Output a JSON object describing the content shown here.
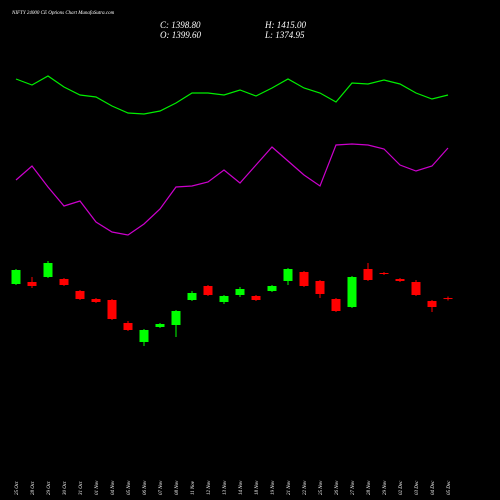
{
  "chart_data": [
    {
      "type": "candlestick",
      "title": "NIFTY 24000 CE Options Chart MunafaSutra.com",
      "info": [
        "C: 1398.80",
        "H: 1415.00",
        "O: 1399.60",
        "L: 1374.95"
      ],
      "categories": [
        "25 Oct",
        "28 Oct",
        "29 Oct",
        "30 Oct",
        "31 Oct",
        "01 Nov",
        "04 Nov",
        "05 Nov",
        "06 Nov",
        "07 Nov",
        "08 Nov",
        "11 Nov",
        "12 Nov",
        "13 Nov",
        "14 Nov",
        "18 Nov",
        "19 Nov",
        "21 Nov",
        "22 Nov",
        "25 Nov",
        "26 Nov",
        "27 Nov",
        "28 Nov",
        "29 Nov",
        "02 Dec",
        "03 Dec",
        "04 Dec",
        "05 Dec"
      ],
      "open": [
        1540,
        1560,
        1610,
        1590,
        1470,
        1390,
        1380,
        1150,
        960,
        1110,
        1130,
        1380,
        1520,
        1360,
        1430,
        1420,
        1470,
        1570,
        1660,
        1570,
        1390,
        1310,
        1690,
        1650,
        1590,
        1560,
        1370,
        1399.6
      ],
      "high": [
        1690,
        1610,
        1770,
        1600,
        1480,
        1400,
        1390,
        1170,
        1090,
        1150,
        1280,
        1470,
        1530,
        1430,
        1510,
        1430,
        1530,
        1700,
        1670,
        1580,
        1400,
        1620,
        1750,
        1660,
        1600,
        1580,
        1380,
        1415
      ],
      "low": [
        1530,
        1500,
        1600,
        1520,
        1380,
        1350,
        1180,
        1070,
        920,
        1100,
        1010,
        1370,
        1420,
        1340,
        1410,
        1370,
        1460,
        1530,
        1510,
        1400,
        1260,
        1300,
        1570,
        1630,
        1560,
        1420,
        1260,
        1374.95
      ],
      "close": [
        1680,
        1520,
        1750,
        1530,
        1390,
        1360,
        1190,
        1080,
        1080,
        1140,
        1270,
        1450,
        1430,
        1420,
        1490,
        1380,
        1520,
        1690,
        1520,
        1440,
        1270,
        1610,
        1580,
        1640,
        1570,
        1430,
        1310,
        1398.8
      ],
      "up_color": "#00ff00",
      "down_color": "#ff0000",
      "ylim": [
        880,
        1880
      ]
    },
    {
      "type": "line",
      "series": [
        {
          "color": "#00ee00",
          "values": [
            221,
            215,
            224,
            213,
            205,
            203,
            194,
            187,
            186,
            189,
            197,
            207,
            207,
            205,
            210,
            204,
            212,
            221,
            212,
            207,
            198,
            217,
            216,
            220,
            216,
            207,
            201,
            205
          ]
        },
        {
          "color": "#cc00cc",
          "values": [
            120,
            134,
            113,
            94,
            99,
            78,
            68,
            65,
            76,
            91,
            113,
            114,
            118,
            130,
            117,
            135,
            153,
            139,
            125,
            114,
            155,
            156,
            155,
            151,
            135,
            129,
            134,
            152
          ]
        }
      ],
      "ylim": [
        50,
        250
      ]
    }
  ]
}
